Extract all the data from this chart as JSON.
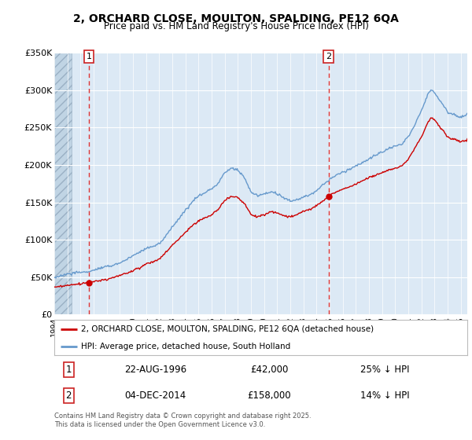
{
  "title": "2, ORCHARD CLOSE, MOULTON, SPALDING, PE12 6QA",
  "subtitle": "Price paid vs. HM Land Registry's House Price Index (HPI)",
  "legend_line1": "2, ORCHARD CLOSE, MOULTON, SPALDING, PE12 6QA (detached house)",
  "legend_line2": "HPI: Average price, detached house, South Holland",
  "footer": "Contains HM Land Registry data © Crown copyright and database right 2025.\nThis data is licensed under the Open Government Licence v3.0.",
  "sale1_label": "1",
  "sale1_date": "22-AUG-1996",
  "sale1_price": "£42,000",
  "sale1_hpi": "25% ↓ HPI",
  "sale2_label": "2",
  "sale2_date": "04-DEC-2014",
  "sale2_price": "£158,000",
  "sale2_hpi": "14% ↓ HPI",
  "background_color": "#dce9f5",
  "red_line_color": "#cc0000",
  "blue_line_color": "#6699cc",
  "dashed_vline_color": "#dd3333",
  "ylim": [
    0,
    350000
  ],
  "yticks": [
    0,
    50000,
    100000,
    150000,
    200000,
    250000,
    300000,
    350000
  ],
  "ytick_labels": [
    "£0",
    "£50K",
    "£100K",
    "£150K",
    "£200K",
    "£250K",
    "£300K",
    "£350K"
  ],
  "sale1_x": 1996.65,
  "sale2_x": 2014.92,
  "sale1_y": 42000,
  "sale2_y": 158000,
  "xlim_start": 1994.0,
  "xlim_end": 2025.5
}
